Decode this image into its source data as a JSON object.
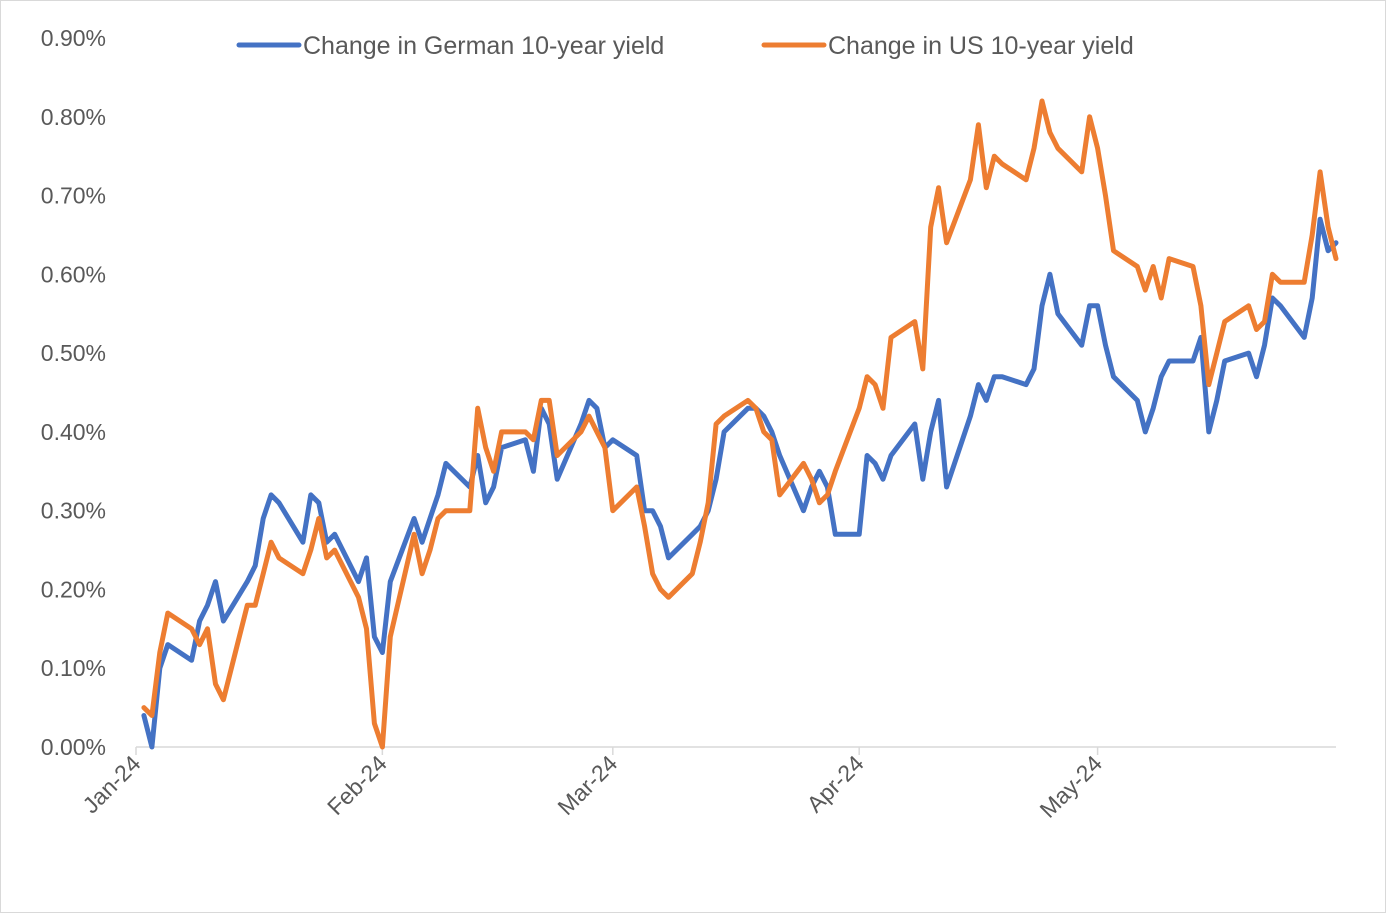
{
  "chart_data": {
    "type": "line",
    "title": "",
    "xlabel": "",
    "ylabel": "",
    "ylim": [
      0,
      0.9
    ],
    "y_unit": "%",
    "y_ticks": [
      "0.00%",
      "0.10%",
      "0.20%",
      "0.30%",
      "0.40%",
      "0.50%",
      "0.60%",
      "0.70%",
      "0.80%",
      "0.90%"
    ],
    "x_ticks": [
      {
        "label": "Jan-24",
        "date": "2024-01-01"
      },
      {
        "label": "Feb-24",
        "date": "2024-02-01"
      },
      {
        "label": "Mar-24",
        "date": "2024-03-01"
      },
      {
        "label": "Apr-24",
        "date": "2024-04-01"
      },
      {
        "label": "May-24",
        "date": "2024-05-01"
      }
    ],
    "x_range": [
      "2024-01-01",
      "2024-05-31"
    ],
    "grid": false,
    "legend_position": "top",
    "series": [
      {
        "name": "Change in German 10-year yield",
        "color": "#4472C4",
        "points": [
          [
            "2024-01-02",
            0.04
          ],
          [
            "2024-01-03",
            0.0
          ],
          [
            "2024-01-04",
            0.1
          ],
          [
            "2024-01-05",
            0.13
          ],
          [
            "2024-01-08",
            0.11
          ],
          [
            "2024-01-09",
            0.16
          ],
          [
            "2024-01-10",
            0.18
          ],
          [
            "2024-01-11",
            0.21
          ],
          [
            "2024-01-12",
            0.16
          ],
          [
            "2024-01-15",
            0.21
          ],
          [
            "2024-01-16",
            0.23
          ],
          [
            "2024-01-17",
            0.29
          ],
          [
            "2024-01-18",
            0.32
          ],
          [
            "2024-01-19",
            0.31
          ],
          [
            "2024-01-22",
            0.26
          ],
          [
            "2024-01-23",
            0.32
          ],
          [
            "2024-01-24",
            0.31
          ],
          [
            "2024-01-25",
            0.26
          ],
          [
            "2024-01-26",
            0.27
          ],
          [
            "2024-01-29",
            0.21
          ],
          [
            "2024-01-30",
            0.24
          ],
          [
            "2024-01-31",
            0.14
          ],
          [
            "2024-02-01",
            0.12
          ],
          [
            "2024-02-02",
            0.21
          ],
          [
            "2024-02-05",
            0.29
          ],
          [
            "2024-02-06",
            0.26
          ],
          [
            "2024-02-07",
            0.29
          ],
          [
            "2024-02-08",
            0.32
          ],
          [
            "2024-02-09",
            0.36
          ],
          [
            "2024-02-12",
            0.33
          ],
          [
            "2024-02-13",
            0.37
          ],
          [
            "2024-02-14",
            0.31
          ],
          [
            "2024-02-15",
            0.33
          ],
          [
            "2024-02-16",
            0.38
          ],
          [
            "2024-02-19",
            0.39
          ],
          [
            "2024-02-20",
            0.35
          ],
          [
            "2024-02-21",
            0.43
          ],
          [
            "2024-02-22",
            0.41
          ],
          [
            "2024-02-23",
            0.34
          ],
          [
            "2024-02-26",
            0.41
          ],
          [
            "2024-02-27",
            0.44
          ],
          [
            "2024-02-28",
            0.43
          ],
          [
            "2024-02-29",
            0.38
          ],
          [
            "2024-03-01",
            0.39
          ],
          [
            "2024-03-04",
            0.37
          ],
          [
            "2024-03-05",
            0.3
          ],
          [
            "2024-03-06",
            0.3
          ],
          [
            "2024-03-07",
            0.28
          ],
          [
            "2024-03-08",
            0.24
          ],
          [
            "2024-03-11",
            0.27
          ],
          [
            "2024-03-12",
            0.28
          ],
          [
            "2024-03-13",
            0.3
          ],
          [
            "2024-03-14",
            0.34
          ],
          [
            "2024-03-15",
            0.4
          ],
          [
            "2024-03-18",
            0.43
          ],
          [
            "2024-03-19",
            0.43
          ],
          [
            "2024-03-20",
            0.42
          ],
          [
            "2024-03-21",
            0.4
          ],
          [
            "2024-03-22",
            0.37
          ],
          [
            "2024-03-25",
            0.3
          ],
          [
            "2024-03-26",
            0.33
          ],
          [
            "2024-03-27",
            0.35
          ],
          [
            "2024-03-28",
            0.33
          ],
          [
            "2024-03-29",
            0.27
          ],
          [
            "2024-04-01",
            0.27
          ],
          [
            "2024-04-02",
            0.37
          ],
          [
            "2024-04-03",
            0.36
          ],
          [
            "2024-04-04",
            0.34
          ],
          [
            "2024-04-05",
            0.37
          ],
          [
            "2024-04-08",
            0.41
          ],
          [
            "2024-04-09",
            0.34
          ],
          [
            "2024-04-10",
            0.4
          ],
          [
            "2024-04-11",
            0.44
          ],
          [
            "2024-04-12",
            0.33
          ],
          [
            "2024-04-15",
            0.42
          ],
          [
            "2024-04-16",
            0.46
          ],
          [
            "2024-04-17",
            0.44
          ],
          [
            "2024-04-18",
            0.47
          ],
          [
            "2024-04-19",
            0.47
          ],
          [
            "2024-04-22",
            0.46
          ],
          [
            "2024-04-23",
            0.48
          ],
          [
            "2024-04-24",
            0.56
          ],
          [
            "2024-04-25",
            0.6
          ],
          [
            "2024-04-26",
            0.55
          ],
          [
            "2024-04-29",
            0.51
          ],
          [
            "2024-04-30",
            0.56
          ],
          [
            "2024-05-01",
            0.56
          ],
          [
            "2024-05-02",
            0.51
          ],
          [
            "2024-05-03",
            0.47
          ],
          [
            "2024-05-06",
            0.44
          ],
          [
            "2024-05-07",
            0.4
          ],
          [
            "2024-05-08",
            0.43
          ],
          [
            "2024-05-09",
            0.47
          ],
          [
            "2024-05-10",
            0.49
          ],
          [
            "2024-05-13",
            0.49
          ],
          [
            "2024-05-14",
            0.52
          ],
          [
            "2024-05-15",
            0.4
          ],
          [
            "2024-05-16",
            0.44
          ],
          [
            "2024-05-17",
            0.49
          ],
          [
            "2024-05-20",
            0.5
          ],
          [
            "2024-05-21",
            0.47
          ],
          [
            "2024-05-22",
            0.51
          ],
          [
            "2024-05-23",
            0.57
          ],
          [
            "2024-05-24",
            0.56
          ],
          [
            "2024-05-27",
            0.52
          ],
          [
            "2024-05-28",
            0.57
          ],
          [
            "2024-05-29",
            0.67
          ],
          [
            "2024-05-30",
            0.63
          ],
          [
            "2024-05-31",
            0.64
          ]
        ]
      },
      {
        "name": "Change in US 10-year yield",
        "color": "#ED7D31",
        "points": [
          [
            "2024-01-02",
            0.05
          ],
          [
            "2024-01-03",
            0.04
          ],
          [
            "2024-01-04",
            0.12
          ],
          [
            "2024-01-05",
            0.17
          ],
          [
            "2024-01-08",
            0.15
          ],
          [
            "2024-01-09",
            0.13
          ],
          [
            "2024-01-10",
            0.15
          ],
          [
            "2024-01-11",
            0.08
          ],
          [
            "2024-01-12",
            0.06
          ],
          [
            "2024-01-15",
            0.18
          ],
          [
            "2024-01-16",
            0.18
          ],
          [
            "2024-01-17",
            0.22
          ],
          [
            "2024-01-18",
            0.26
          ],
          [
            "2024-01-19",
            0.24
          ],
          [
            "2024-01-22",
            0.22
          ],
          [
            "2024-01-23",
            0.25
          ],
          [
            "2024-01-24",
            0.29
          ],
          [
            "2024-01-25",
            0.24
          ],
          [
            "2024-01-26",
            0.25
          ],
          [
            "2024-01-29",
            0.19
          ],
          [
            "2024-01-30",
            0.15
          ],
          [
            "2024-01-31",
            0.03
          ],
          [
            "2024-02-01",
            0.0
          ],
          [
            "2024-02-02",
            0.14
          ],
          [
            "2024-02-05",
            0.27
          ],
          [
            "2024-02-06",
            0.22
          ],
          [
            "2024-02-07",
            0.25
          ],
          [
            "2024-02-08",
            0.29
          ],
          [
            "2024-02-09",
            0.3
          ],
          [
            "2024-02-12",
            0.3
          ],
          [
            "2024-02-13",
            0.43
          ],
          [
            "2024-02-14",
            0.38
          ],
          [
            "2024-02-15",
            0.35
          ],
          [
            "2024-02-16",
            0.4
          ],
          [
            "2024-02-19",
            0.4
          ],
          [
            "2024-02-20",
            0.39
          ],
          [
            "2024-02-21",
            0.44
          ],
          [
            "2024-02-22",
            0.44
          ],
          [
            "2024-02-23",
            0.37
          ],
          [
            "2024-02-26",
            0.4
          ],
          [
            "2024-02-27",
            0.42
          ],
          [
            "2024-02-28",
            0.4
          ],
          [
            "2024-02-29",
            0.38
          ],
          [
            "2024-03-01",
            0.3
          ],
          [
            "2024-03-04",
            0.33
          ],
          [
            "2024-03-05",
            0.28
          ],
          [
            "2024-03-06",
            0.22
          ],
          [
            "2024-03-07",
            0.2
          ],
          [
            "2024-03-08",
            0.19
          ],
          [
            "2024-03-11",
            0.22
          ],
          [
            "2024-03-12",
            0.26
          ],
          [
            "2024-03-13",
            0.31
          ],
          [
            "2024-03-14",
            0.41
          ],
          [
            "2024-03-15",
            0.42
          ],
          [
            "2024-03-18",
            0.44
          ],
          [
            "2024-03-19",
            0.43
          ],
          [
            "2024-03-20",
            0.4
          ],
          [
            "2024-03-21",
            0.39
          ],
          [
            "2024-03-22",
            0.32
          ],
          [
            "2024-03-25",
            0.36
          ],
          [
            "2024-03-26",
            0.34
          ],
          [
            "2024-03-27",
            0.31
          ],
          [
            "2024-03-28",
            0.32
          ],
          [
            "2024-03-29",
            0.35
          ],
          [
            "2024-04-01",
            0.43
          ],
          [
            "2024-04-02",
            0.47
          ],
          [
            "2024-04-03",
            0.46
          ],
          [
            "2024-04-04",
            0.43
          ],
          [
            "2024-04-05",
            0.52
          ],
          [
            "2024-04-08",
            0.54
          ],
          [
            "2024-04-09",
            0.48
          ],
          [
            "2024-04-10",
            0.66
          ],
          [
            "2024-04-11",
            0.71
          ],
          [
            "2024-04-12",
            0.64
          ],
          [
            "2024-04-15",
            0.72
          ],
          [
            "2024-04-16",
            0.79
          ],
          [
            "2024-04-17",
            0.71
          ],
          [
            "2024-04-18",
            0.75
          ],
          [
            "2024-04-19",
            0.74
          ],
          [
            "2024-04-22",
            0.72
          ],
          [
            "2024-04-23",
            0.76
          ],
          [
            "2024-04-24",
            0.82
          ],
          [
            "2024-04-25",
            0.78
          ],
          [
            "2024-04-26",
            0.76
          ],
          [
            "2024-04-29",
            0.73
          ],
          [
            "2024-04-30",
            0.8
          ],
          [
            "2024-05-01",
            0.76
          ],
          [
            "2024-05-02",
            0.7
          ],
          [
            "2024-05-03",
            0.63
          ],
          [
            "2024-05-06",
            0.61
          ],
          [
            "2024-05-07",
            0.58
          ],
          [
            "2024-05-08",
            0.61
          ],
          [
            "2024-05-09",
            0.57
          ],
          [
            "2024-05-10",
            0.62
          ],
          [
            "2024-05-13",
            0.61
          ],
          [
            "2024-05-14",
            0.56
          ],
          [
            "2024-05-15",
            0.46
          ],
          [
            "2024-05-16",
            0.5
          ],
          [
            "2024-05-17",
            0.54
          ],
          [
            "2024-05-20",
            0.56
          ],
          [
            "2024-05-21",
            0.53
          ],
          [
            "2024-05-22",
            0.54
          ],
          [
            "2024-05-23",
            0.6
          ],
          [
            "2024-05-24",
            0.59
          ],
          [
            "2024-05-27",
            0.59
          ],
          [
            "2024-05-28",
            0.65
          ],
          [
            "2024-05-29",
            0.73
          ],
          [
            "2024-05-30",
            0.66
          ],
          [
            "2024-05-31",
            0.62
          ]
        ]
      }
    ]
  }
}
